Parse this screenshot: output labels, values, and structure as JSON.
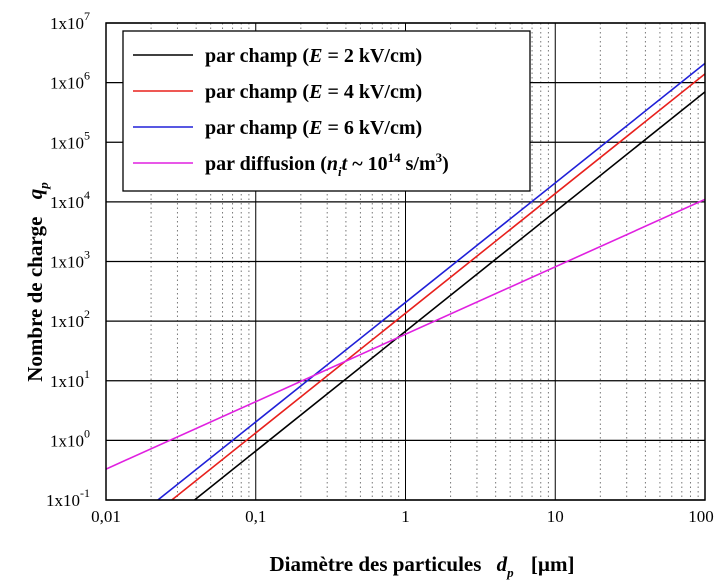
{
  "chart_data": {
    "type": "line",
    "x_scale": "log",
    "y_scale": "log",
    "xlim": [
      0.01,
      100
    ],
    "ylim": [
      0.1,
      10000000
    ],
    "grid": true,
    "legend_position": "top-left",
    "xlabel": {
      "main": "Diamètre des particules",
      "symbol": "d",
      "sub": "p",
      "unit": "[µm]"
    },
    "ylabel": {
      "main": "Nombre de charge",
      "symbol": "q",
      "sub": "p"
    },
    "x_tick_labels": [
      {
        "value": 0.01,
        "label": "0,01"
      },
      {
        "value": 0.1,
        "label": "0,1"
      },
      {
        "value": 1,
        "label": "1"
      },
      {
        "value": 10,
        "label": "10"
      },
      {
        "value": 100,
        "label": "100"
      }
    ],
    "y_tick_labels": [
      {
        "value": 0.1,
        "base": "1x10",
        "exp": "-1"
      },
      {
        "value": 1,
        "base": "1x10",
        "exp": "0"
      },
      {
        "value": 10,
        "base": "1x10",
        "exp": "1"
      },
      {
        "value": 100,
        "base": "1x10",
        "exp": "2"
      },
      {
        "value": 1000,
        "base": "1x10",
        "exp": "3"
      },
      {
        "value": 10000,
        "base": "1x10",
        "exp": "4"
      },
      {
        "value": 100000,
        "base": "1x10",
        "exp": "5"
      },
      {
        "value": 1000000,
        "base": "1x10",
        "exp": "6"
      },
      {
        "value": 10000000,
        "base": "1x10",
        "exp": "7"
      }
    ],
    "series": [
      {
        "id": "e2",
        "color": "#000000",
        "legend": {
          "a": "par champ (",
          "i": "E",
          "b": " = 2 kV/cm)"
        },
        "points": [
          {
            "x": 0.039,
            "y": 0.1
          },
          {
            "x": 100,
            "y": 700000
          }
        ]
      },
      {
        "id": "e4",
        "color": "#e8201c",
        "legend": {
          "a": "par champ (",
          "i": "E",
          "b": " = 4 kV/cm)"
        },
        "points": [
          {
            "x": 0.0275,
            "y": 0.1
          },
          {
            "x": 100,
            "y": 1400000
          }
        ]
      },
      {
        "id": "e6",
        "color": "#2020d8",
        "legend": {
          "a": "par champ (",
          "i": "E",
          "b": " = 6 kV/cm)"
        },
        "points": [
          {
            "x": 0.0222,
            "y": 0.1
          },
          {
            "x": 100,
            "y": 2100000
          }
        ]
      },
      {
        "id": "diff",
        "color": "#e020e0",
        "legend": {
          "a": "par diffusion (",
          "i": "n",
          "isub": "i",
          "i2": "t",
          "b": " ~ 10",
          "sup": "14",
          "c": " s/m",
          "sup2": "3",
          "d": ")"
        },
        "points": [
          {
            "x": 0.01,
            "y": 0.33
          },
          {
            "x": 100,
            "y": 11000
          }
        ]
      }
    ]
  }
}
